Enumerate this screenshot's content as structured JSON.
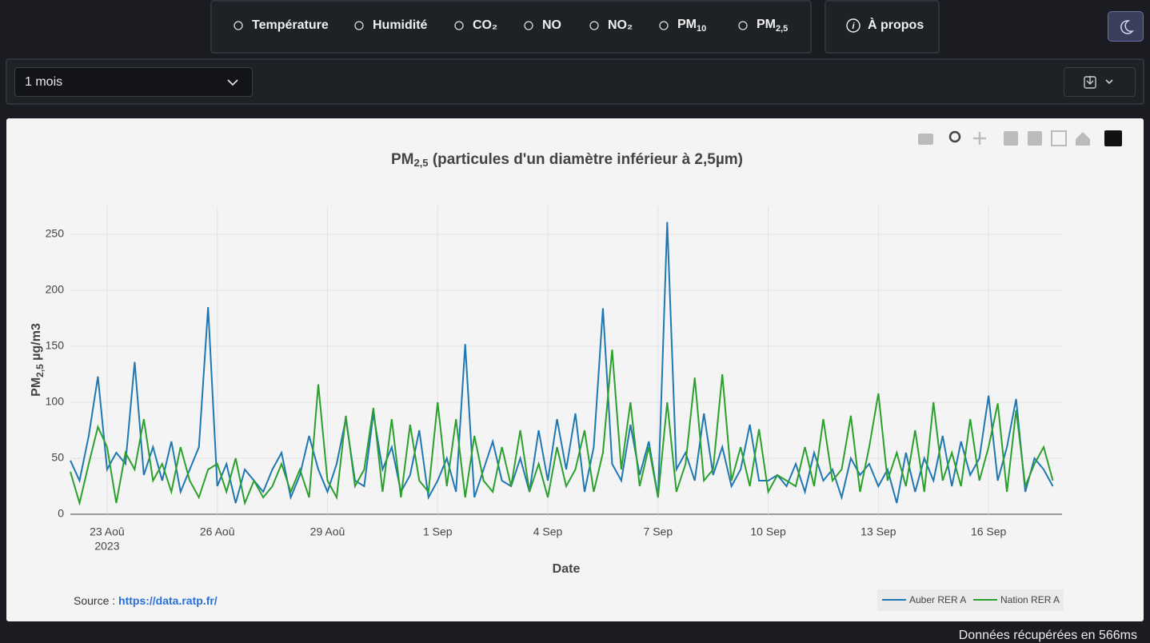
{
  "nav": {
    "items": [
      {
        "label": "Température"
      },
      {
        "label": "Humidité"
      },
      {
        "label": "CO₂"
      },
      {
        "label": "NO"
      },
      {
        "label": "NO₂"
      },
      {
        "label": "PM",
        "sub": "10"
      },
      {
        "label": "PM",
        "sub": "2,5"
      }
    ],
    "about": "À propos"
  },
  "period_select": "1 mois",
  "chart_data": {
    "type": "line",
    "title": {
      "main": "PM",
      "sub": "2,5",
      "rest": " (particules d'un diamètre inférieur à 2,5µm)"
    },
    "x_label": "Date",
    "y_label": {
      "main": "PM",
      "sub": "2,5",
      "rest": " µg/m3"
    },
    "x": [
      "2023-08-22 00:00",
      "2023-08-22 06:00",
      "2023-08-22 12:00",
      "2023-08-22 18:00",
      "2023-08-23 00:00",
      "2023-08-23 06:00",
      "2023-08-23 12:00",
      "2023-08-23 18:00",
      "2023-08-24 00:00",
      "2023-08-24 06:00",
      "2023-08-24 12:00",
      "2023-08-24 18:00",
      "2023-08-25 00:00",
      "2023-08-25 06:00",
      "2023-08-25 12:00",
      "2023-08-25 18:00",
      "2023-08-26 00:00",
      "2023-08-26 06:00",
      "2023-08-26 12:00",
      "2023-08-26 18:00",
      "2023-08-27 00:00",
      "2023-08-27 06:00",
      "2023-08-27 12:00",
      "2023-08-27 18:00",
      "2023-08-28 00:00",
      "2023-08-28 06:00",
      "2023-08-28 12:00",
      "2023-08-28 18:00",
      "2023-08-29 00:00",
      "2023-08-29 06:00",
      "2023-08-29 12:00",
      "2023-08-29 18:00",
      "2023-08-30 00:00",
      "2023-08-30 06:00",
      "2023-08-30 12:00",
      "2023-08-30 18:00",
      "2023-08-31 00:00",
      "2023-08-31 06:00",
      "2023-08-31 12:00",
      "2023-08-31 18:00",
      "2023-09-01 00:00",
      "2023-09-01 06:00",
      "2023-09-01 12:00",
      "2023-09-01 18:00",
      "2023-09-02 00:00",
      "2023-09-02 06:00",
      "2023-09-02 12:00",
      "2023-09-02 18:00",
      "2023-09-03 00:00",
      "2023-09-03 06:00",
      "2023-09-03 12:00",
      "2023-09-03 18:00",
      "2023-09-04 00:00",
      "2023-09-04 06:00",
      "2023-09-04 12:00",
      "2023-09-04 18:00",
      "2023-09-05 00:00",
      "2023-09-05 06:00",
      "2023-09-05 12:00",
      "2023-09-05 18:00",
      "2023-09-06 00:00",
      "2023-09-06 06:00",
      "2023-09-06 12:00",
      "2023-09-06 18:00",
      "2023-09-07 00:00",
      "2023-09-07 06:00",
      "2023-09-07 12:00",
      "2023-09-07 18:00",
      "2023-09-08 00:00",
      "2023-09-08 06:00",
      "2023-09-08 12:00",
      "2023-09-08 18:00",
      "2023-09-09 00:00",
      "2023-09-09 06:00",
      "2023-09-09 12:00",
      "2023-09-09 18:00",
      "2023-09-10 00:00",
      "2023-09-10 06:00",
      "2023-09-10 12:00",
      "2023-09-10 18:00",
      "2023-09-11 00:00",
      "2023-09-11 06:00",
      "2023-09-11 12:00",
      "2023-09-11 18:00",
      "2023-09-12 00:00",
      "2023-09-12 06:00",
      "2023-09-12 12:00",
      "2023-09-12 18:00",
      "2023-09-13 00:00",
      "2023-09-13 06:00",
      "2023-09-13 12:00",
      "2023-09-13 18:00",
      "2023-09-14 00:00",
      "2023-09-14 06:00",
      "2023-09-14 12:00",
      "2023-09-14 18:00",
      "2023-09-15 00:00",
      "2023-09-15 06:00",
      "2023-09-15 12:00",
      "2023-09-15 18:00",
      "2023-09-16 00:00",
      "2023-09-16 06:00",
      "2023-09-16 12:00",
      "2023-09-16 18:00",
      "2023-09-17 00:00",
      "2023-09-17 06:00",
      "2023-09-17 12:00",
      "2023-09-17 18:00"
    ],
    "series": [
      {
        "name": "Auber RER A",
        "color": "#1f77b4",
        "values": [
          48,
          30,
          70,
          123,
          40,
          55,
          45,
          136,
          35,
          60,
          30,
          65,
          20,
          40,
          60,
          185,
          25,
          45,
          10,
          40,
          30,
          20,
          40,
          55,
          15,
          35,
          70,
          40,
          20,
          45,
          85,
          30,
          25,
          90,
          40,
          60,
          20,
          35,
          75,
          15,
          30,
          50,
          20,
          152,
          15,
          40,
          65,
          30,
          25,
          50,
          20,
          75,
          30,
          85,
          40,
          90,
          20,
          60,
          184,
          45,
          30,
          80,
          35,
          65,
          15,
          261,
          40,
          55,
          30,
          90,
          35,
          60,
          25,
          40,
          80,
          30,
          30,
          35,
          25,
          45,
          20,
          55,
          30,
          40,
          15,
          50,
          35,
          45,
          25,
          40,
          10,
          55,
          20,
          50,
          30,
          70,
          25,
          65,
          35,
          50,
          106,
          30,
          60,
          103,
          20,
          50,
          40,
          25
        ]
      },
      {
        "name": "Nation RER A",
        "color": "#2ca02c",
        "values": [
          38,
          10,
          45,
          78,
          60,
          10,
          55,
          40,
          85,
          30,
          45,
          20,
          60,
          30,
          15,
          40,
          45,
          20,
          50,
          10,
          30,
          15,
          25,
          45,
          20,
          40,
          15,
          116,
          30,
          15,
          88,
          25,
          40,
          95,
          20,
          85,
          15,
          80,
          30,
          20,
          100,
          25,
          85,
          15,
          70,
          30,
          20,
          60,
          25,
          75,
          20,
          45,
          15,
          60,
          25,
          40,
          75,
          20,
          55,
          147,
          40,
          100,
          25,
          60,
          15,
          100,
          20,
          45,
          122,
          30,
          40,
          125,
          30,
          60,
          25,
          76,
          20,
          35,
          30,
          25,
          60,
          25,
          85,
          30,
          40,
          88,
          20,
          60,
          108,
          30,
          55,
          25,
          75,
          20,
          100,
          30,
          55,
          25,
          85,
          30,
          60,
          99,
          20,
          93,
          25,
          45,
          60,
          30
        ]
      }
    ],
    "xlim": [
      "2023-08-22 00:00",
      "2023-09-18 00:00"
    ],
    "xticks": [
      {
        "value": "2023-08-23 00:00",
        "label": "23 Aoû"
      },
      {
        "value": "2023-08-26 00:00",
        "label": "26 Aoû"
      },
      {
        "value": "2023-08-29 00:00",
        "label": "29 Aoû"
      },
      {
        "value": "2023-09-01 00:00",
        "label": "1 Sep"
      },
      {
        "value": "2023-09-04 00:00",
        "label": "4 Sep"
      },
      {
        "value": "2023-09-07 00:00",
        "label": "7 Sep"
      },
      {
        "value": "2023-09-10 00:00",
        "label": "10 Sep"
      },
      {
        "value": "2023-09-13 00:00",
        "label": "13 Sep"
      },
      {
        "value": "2023-09-16 00:00",
        "label": "16 Sep"
      }
    ],
    "x_year_label": "2023",
    "ylim": [
      0,
      275
    ],
    "yticks": [
      0,
      50,
      100,
      150,
      200,
      250
    ],
    "grid": true,
    "legend": "bottom-right"
  },
  "source": {
    "label": "Source : ",
    "link": "https://data.ratp.fr/"
  },
  "footer": "Données récupérées en 566ms"
}
